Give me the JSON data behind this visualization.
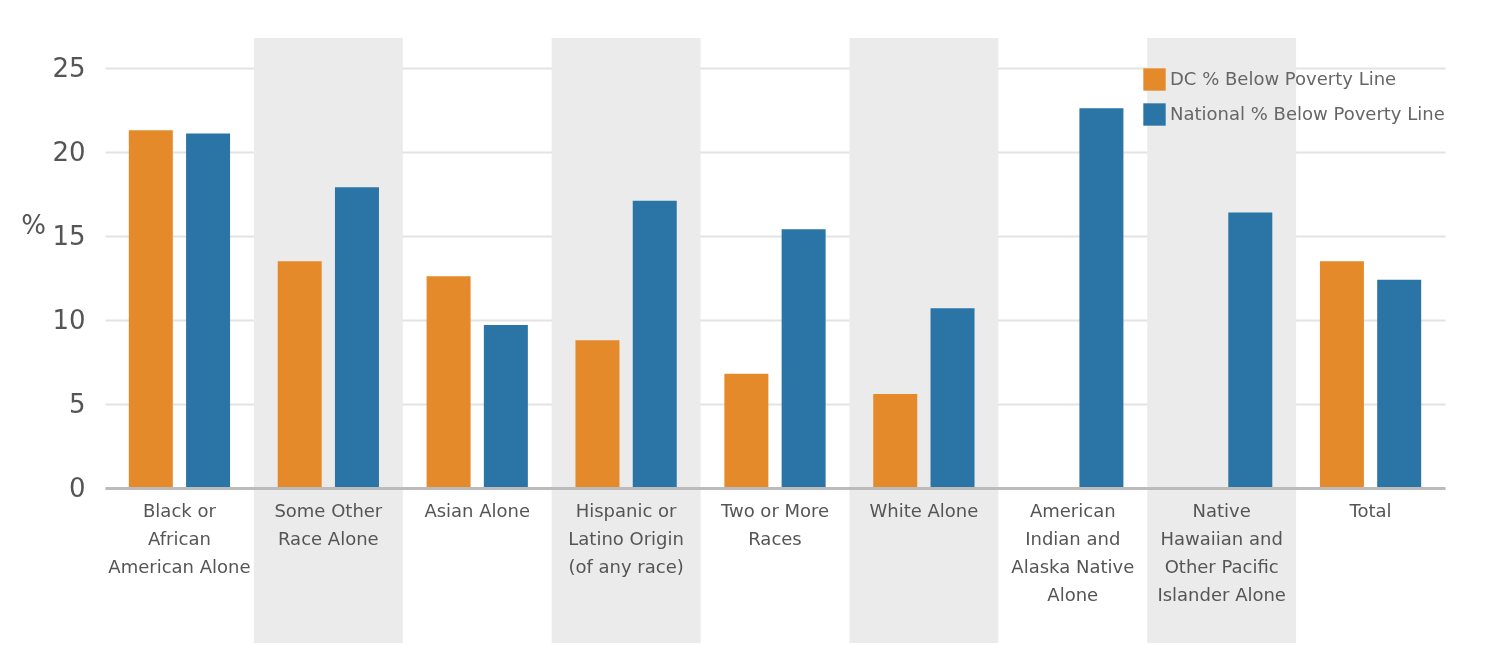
{
  "chart_data": {
    "type": "bar",
    "ylabel": "%",
    "categories": [
      "Black or African American Alone",
      "Some Other Race Alone",
      "Asian Alone",
      "Hispanic or Latino Origin (of any race)",
      "Two or More Races",
      "White Alone",
      "American Indian and Alaska Native Alone",
      "Native Hawaiian and Other Pacific Islander Alone",
      "Total"
    ],
    "series": [
      {
        "name": "DC % Below Poverty Line",
        "color": "#e58a2a",
        "values": [
          21.3,
          13.5,
          12.6,
          8.8,
          6.8,
          5.6,
          null,
          null,
          13.5
        ]
      },
      {
        "name": "National % Below Poverty Line",
        "color": "#2a74a6",
        "values": [
          21.1,
          17.9,
          9.7,
          17.1,
          15.4,
          10.7,
          22.6,
          16.4,
          12.4
        ]
      }
    ],
    "ylim": [
      0,
      25
    ],
    "yticks": [
      0,
      5,
      10,
      15,
      20,
      25
    ],
    "grid": "y",
    "legend": "top right",
    "bands": [
      {
        "axis": "x",
        "from": "Some Other Race Alone",
        "to": "Some Other Race Alone",
        "color": "#ebebeb"
      },
      {
        "axis": "x",
        "from": "Hispanic or Latino Origin (of any race)",
        "to": "Hispanic or Latino Origin (of any race)",
        "color": "#ebebeb"
      },
      {
        "axis": "x",
        "from": "White Alone",
        "to": "White Alone",
        "color": "#ebebeb"
      },
      {
        "axis": "x",
        "from": "Native Hawaiian and Other Pacific Islander Alone",
        "to": "Native Hawaiian and Other Pacific Islander Alone",
        "color": "#ebebeb"
      }
    ]
  }
}
